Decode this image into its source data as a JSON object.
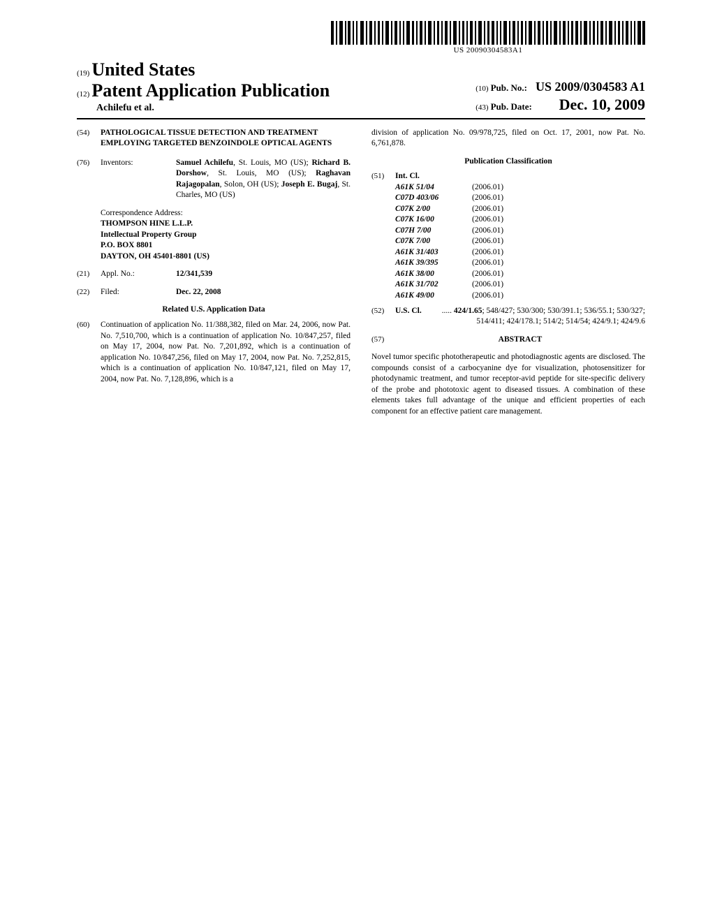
{
  "barcode_text": "US 20090304583A1",
  "header": {
    "country_code": "(19)",
    "country": "United States",
    "type_code": "(12)",
    "type": "Patent Application Publication",
    "authors_short": "Achilefu et al.",
    "pubno_code": "(10)",
    "pubno_label": "Pub. No.:",
    "pubno_value": "US 2009/0304583 A1",
    "pubdate_code": "(43)",
    "pubdate_label": "Pub. Date:",
    "pubdate_value": "Dec. 10, 2009"
  },
  "left": {
    "title_code": "(54)",
    "title": "PATHOLOGICAL TISSUE DETECTION AND TREATMENT EMPLOYING TARGETED BENZOINDOLE OPTICAL AGENTS",
    "inventors_code": "(76)",
    "inventors_label": "Inventors:",
    "inventors_html": "<b>Samuel Achilefu</b>, St. Louis, MO (US); <b>Richard B. Dorshow</b>, St. Louis, MO (US); <b>Raghavan Rajagopalan</b>, Solon, OH (US); <b>Joseph E. Bugaj</b>, St. Charles, MO (US)",
    "corr_label": "Correspondence Address:",
    "corr_lines": [
      "THOMPSON HINE L.L.P.",
      "Intellectual Property Group",
      "P.O. BOX 8801",
      "DAYTON, OH 45401-8801 (US)"
    ],
    "applno_code": "(21)",
    "applno_label": "Appl. No.:",
    "applno_value": "12/341,539",
    "filed_code": "(22)",
    "filed_label": "Filed:",
    "filed_value": "Dec. 22, 2008",
    "related_heading": "Related U.S. Application Data",
    "related_code": "(60)",
    "related_text": "Continuation of application No. 11/388,382, filed on Mar. 24, 2006, now Pat. No. 7,510,700, which is a continuation of application No. 10/847,257, filed on May 17, 2004, now Pat. No. 7,201,892, which is a continuation of application No. 10/847,256, filed on May 17, 2004, now Pat. No. 7,252,815, which is a continuation of application No. 10/847,121, filed on May 17, 2004, now Pat. No. 7,128,896, which is a"
  },
  "right": {
    "related_cont": "division of application No. 09/978,725, filed on Oct. 17, 2001, now Pat. No. 6,761,878.",
    "pubclass_heading": "Publication Classification",
    "intcl_code": "(51)",
    "intcl_label": "Int. Cl.",
    "intcl": [
      {
        "c": "A61K 51/04",
        "v": "(2006.01)"
      },
      {
        "c": "C07D 403/06",
        "v": "(2006.01)"
      },
      {
        "c": "C07K 2/00",
        "v": "(2006.01)"
      },
      {
        "c": "C07K 16/00",
        "v": "(2006.01)"
      },
      {
        "c": "C07H 7/00",
        "v": "(2006.01)"
      },
      {
        "c": "C07K 7/00",
        "v": "(2006.01)"
      },
      {
        "c": "A61K 31/403",
        "v": "(2006.01)"
      },
      {
        "c": "A61K 39/395",
        "v": "(2006.01)"
      },
      {
        "c": "A61K 38/00",
        "v": "(2006.01)"
      },
      {
        "c": "A61K 31/702",
        "v": "(2006.01)"
      },
      {
        "c": "A61K 49/00",
        "v": "(2006.01)"
      }
    ],
    "uscl_code": "(52)",
    "uscl_label": "U.S. Cl.",
    "uscl_value": "..... <b>424/1.65</b>; 548/427; 530/300; 530/391.1; 536/55.1; 530/327; 514/411; 424/178.1; 514/2; 514/54; 424/9.1; 424/9.6",
    "abstract_code": "(57)",
    "abstract_label": "ABSTRACT",
    "abstract_text": "Novel tumor specific phototherapeutic and photodiagnostic agents are disclosed. The compounds consist of a carbocyanine dye for visualization, photosensitizer for photodynamic treatment, and tumor receptor-avid peptide for site-specific delivery of the probe and phototoxic agent to diseased tissues. A combination of these elements takes full advantage of the unique and efficient properties of each component for an effective patient care management."
  }
}
